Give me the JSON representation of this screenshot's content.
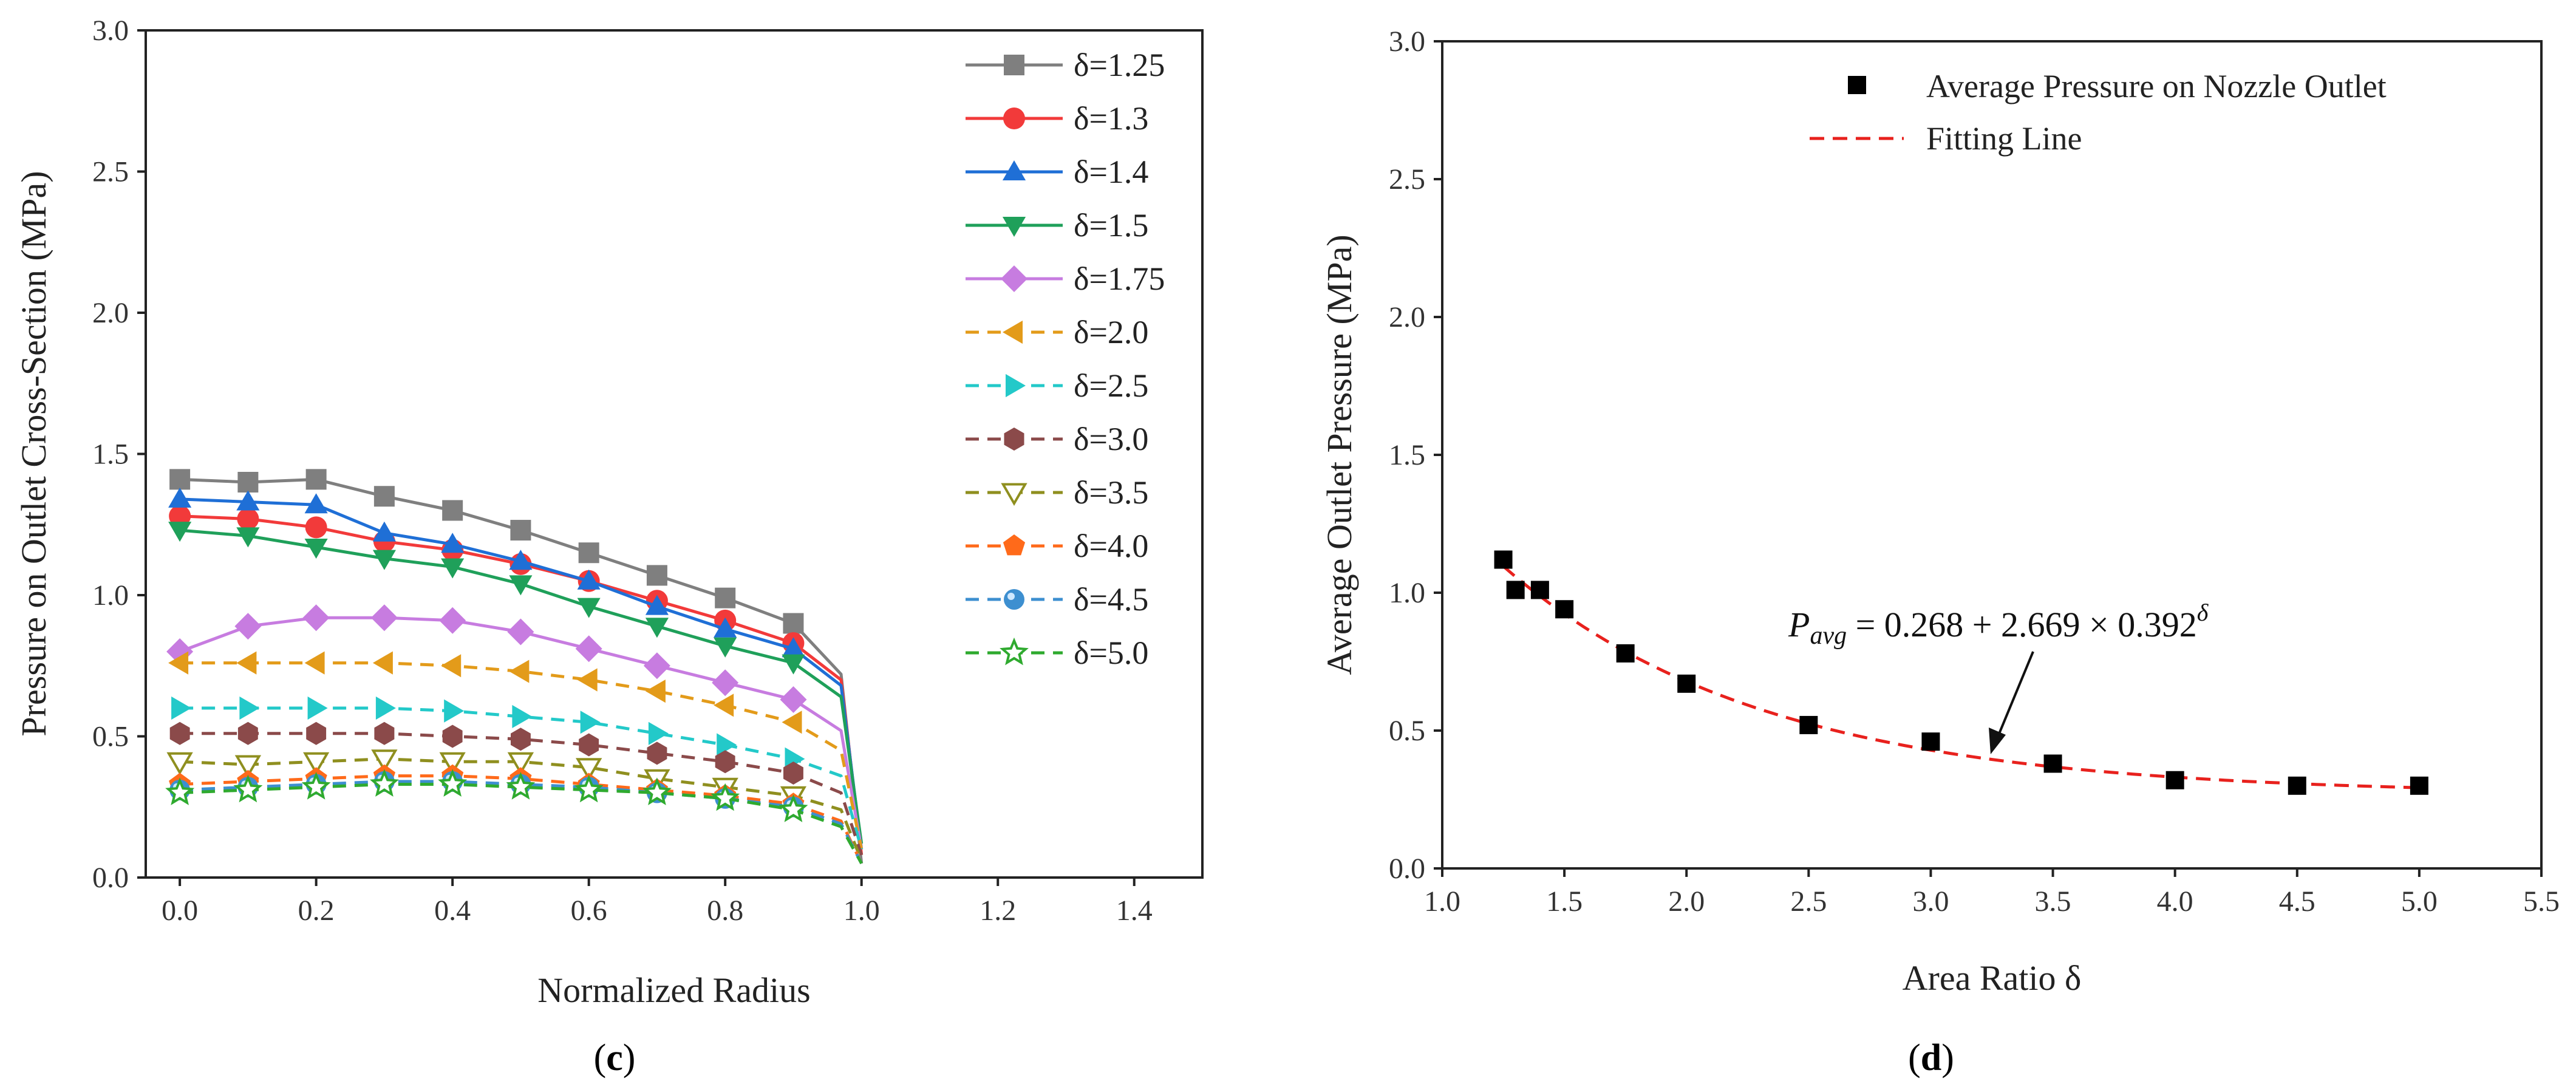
{
  "chart_data": [
    {
      "panel": "c",
      "type": "line",
      "xlabel": "Normalized Radius",
      "ylabel": "Pressure on Outlet Cross-Section (MPa)",
      "xlim": [
        -0.05,
        1.5
      ],
      "ylim": [
        0,
        3.0
      ],
      "xticks": [
        "0.0",
        "0.2",
        "0.4",
        "0.6",
        "0.8",
        "1.0",
        "1.2",
        "1.4"
      ],
      "yticks": [
        "0.0",
        "0.5",
        "1.0",
        "1.5",
        "2.0",
        "2.5",
        "3.0"
      ],
      "x": [
        0.0,
        0.1,
        0.2,
        0.3,
        0.4,
        0.5,
        0.6,
        0.7,
        0.8,
        0.9,
        0.97,
        1.0
      ],
      "marker_x": [
        0.0,
        0.1,
        0.2,
        0.3,
        0.4,
        0.5,
        0.6,
        0.7,
        0.8,
        0.9
      ],
      "series": [
        {
          "name": "δ=1.25",
          "color": "#7f7f7f",
          "marker": "square",
          "dash": "solid",
          "values": [
            1.41,
            1.4,
            1.41,
            1.35,
            1.3,
            1.23,
            1.15,
            1.07,
            0.99,
            0.9,
            0.72,
            0.05
          ]
        },
        {
          "name": "δ=1.3",
          "color": "#f23a3a",
          "marker": "circle",
          "dash": "solid",
          "values": [
            1.28,
            1.27,
            1.24,
            1.19,
            1.16,
            1.11,
            1.05,
            0.98,
            0.91,
            0.83,
            0.7,
            0.08
          ]
        },
        {
          "name": "δ=1.4",
          "color": "#1f6fd6",
          "marker": "triangle-up",
          "dash": "solid",
          "values": [
            1.34,
            1.33,
            1.32,
            1.22,
            1.18,
            1.12,
            1.05,
            0.96,
            0.88,
            0.81,
            0.68,
            0.1
          ]
        },
        {
          "name": "δ=1.5",
          "color": "#1fa05a",
          "marker": "triangle-down",
          "dash": "solid",
          "values": [
            1.23,
            1.21,
            1.17,
            1.13,
            1.1,
            1.04,
            0.96,
            0.89,
            0.82,
            0.76,
            0.64,
            0.12
          ]
        },
        {
          "name": "δ=1.75",
          "color": "#c77ce0",
          "marker": "diamond",
          "dash": "solid",
          "values": [
            0.8,
            0.89,
            0.92,
            0.92,
            0.91,
            0.87,
            0.81,
            0.75,
            0.69,
            0.63,
            0.52,
            0.1
          ]
        },
        {
          "name": "δ=2.0",
          "color": "#e39b1a",
          "marker": "triangle-left",
          "dash": "dashed",
          "values": [
            0.76,
            0.76,
            0.76,
            0.76,
            0.75,
            0.73,
            0.7,
            0.66,
            0.61,
            0.55,
            0.45,
            0.1
          ]
        },
        {
          "name": "δ=2.5",
          "color": "#23c9c9",
          "marker": "triangle-right",
          "dash": "dashed",
          "values": [
            0.6,
            0.6,
            0.6,
            0.6,
            0.59,
            0.57,
            0.55,
            0.51,
            0.47,
            0.42,
            0.36,
            0.1
          ]
        },
        {
          "name": "δ=3.0",
          "color": "#8b4a4a",
          "marker": "hexagon",
          "dash": "dashed",
          "values": [
            0.51,
            0.51,
            0.51,
            0.51,
            0.5,
            0.49,
            0.47,
            0.44,
            0.41,
            0.37,
            0.3,
            0.08
          ]
        },
        {
          "name": "δ=3.5",
          "color": "#8f8f1f",
          "marker": "triangle-down-open",
          "dash": "dashed",
          "values": [
            0.41,
            0.4,
            0.41,
            0.42,
            0.41,
            0.41,
            0.39,
            0.35,
            0.32,
            0.29,
            0.24,
            0.06
          ]
        },
        {
          "name": "δ=4.0",
          "color": "#ff6a1a",
          "marker": "pentagon",
          "dash": "dashed",
          "values": [
            0.33,
            0.34,
            0.35,
            0.36,
            0.36,
            0.35,
            0.33,
            0.31,
            0.29,
            0.26,
            0.2,
            0.05
          ]
        },
        {
          "name": "δ=4.5",
          "color": "#3d8fd0",
          "marker": "sphere",
          "dash": "dashed",
          "values": [
            0.31,
            0.32,
            0.33,
            0.34,
            0.34,
            0.33,
            0.32,
            0.3,
            0.28,
            0.25,
            0.19,
            0.05
          ]
        },
        {
          "name": "δ=5.0",
          "color": "#2faa2f",
          "marker": "star-open",
          "dash": "dashed",
          "values": [
            0.3,
            0.31,
            0.32,
            0.33,
            0.33,
            0.32,
            0.31,
            0.3,
            0.28,
            0.24,
            0.18,
            0.05
          ]
        }
      ],
      "caption": "(c)"
    },
    {
      "panel": "d",
      "type": "scatter",
      "xlabel": "Area Ratio δ",
      "ylabel": "Average Outlet Pressure (MPa)",
      "xlim": [
        1.0,
        5.5
      ],
      "ylim": [
        0,
        3.0
      ],
      "xticks": [
        "1.0",
        "1.5",
        "2.0",
        "2.5",
        "3.0",
        "3.5",
        "4.0",
        "4.5",
        "5.0",
        "5.5"
      ],
      "yticks": [
        "0.0",
        "0.5",
        "1.0",
        "1.5",
        "2.0",
        "2.5",
        "3.0"
      ],
      "points": {
        "name": "Average Pressure on Nozzle Outlet",
        "x": [
          1.25,
          1.3,
          1.4,
          1.5,
          1.75,
          2.0,
          2.5,
          3.0,
          3.5,
          4.0,
          4.5,
          5.0
        ],
        "y": [
          1.12,
          1.01,
          1.01,
          0.94,
          0.78,
          0.67,
          0.52,
          0.46,
          0.38,
          0.32,
          0.3,
          0.3
        ]
      },
      "fit": {
        "name": "Fitting Line",
        "color": "#e8211d",
        "a": 0.268,
        "b": 2.669,
        "c": 0.392,
        "x_range": [
          1.25,
          5.0
        ]
      },
      "annotation": {
        "lhs_symbol": "P",
        "lhs_subscript": "avg",
        "rhs": " = 0.268 + 2.669 × 0.392",
        "exponent": "δ"
      },
      "caption": "(d)"
    }
  ]
}
